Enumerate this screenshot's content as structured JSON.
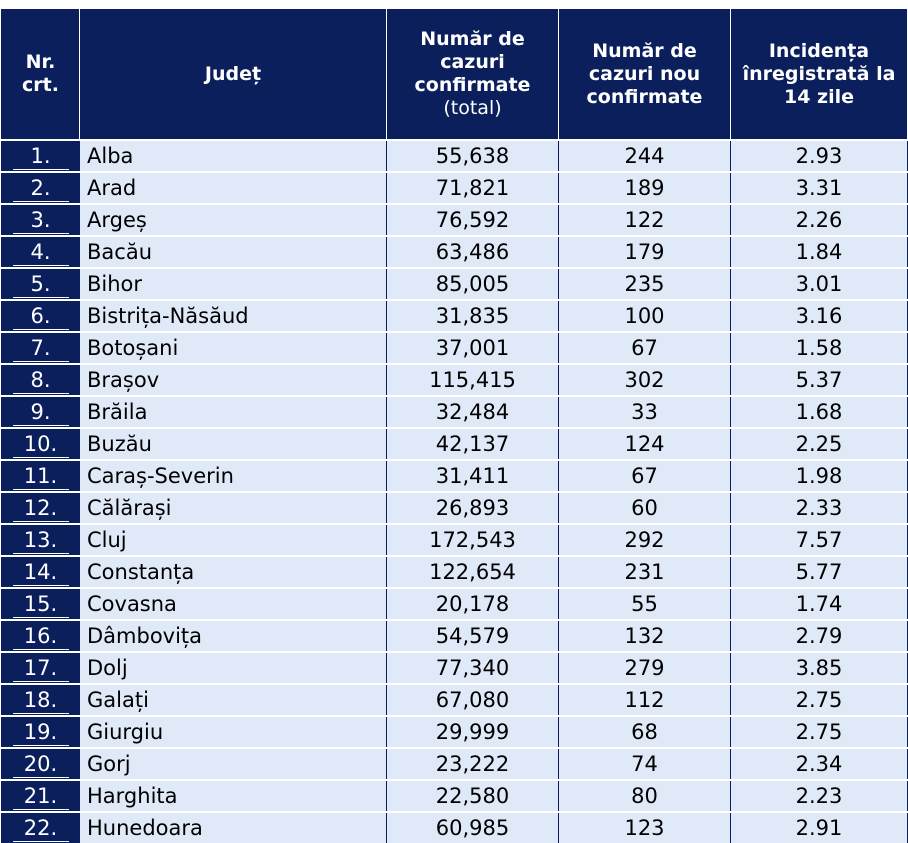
{
  "table": {
    "headers": {
      "nr": "Nr. crt.",
      "judet": "Județ",
      "total_main": "Număr de cazuri confirmate",
      "total_sub": "(total)",
      "nou": "Număr de cazuri nou confirmate",
      "incidenta": "Incidența înregistrată la 14 zile"
    },
    "colors": {
      "header_bg": "#0a1f5c",
      "row_bg": "#dfe9f7"
    },
    "rows": [
      {
        "nr": "1.",
        "judet": "Alba",
        "total": "55,638",
        "nou": "244",
        "incidenta": "2.93"
      },
      {
        "nr": "2.",
        "judet": "Arad",
        "total": "71,821",
        "nou": "189",
        "incidenta": "3.31"
      },
      {
        "nr": "3.",
        "judet": "Argeș",
        "total": "76,592",
        "nou": "122",
        "incidenta": "2.26"
      },
      {
        "nr": "4.",
        "judet": "Bacău",
        "total": "63,486",
        "nou": "179",
        "incidenta": "1.84"
      },
      {
        "nr": "5.",
        "judet": "Bihor",
        "total": "85,005",
        "nou": "235",
        "incidenta": "3.01"
      },
      {
        "nr": "6.",
        "judet": "Bistrița-Năsăud",
        "total": "31,835",
        "nou": "100",
        "incidenta": "3.16"
      },
      {
        "nr": "7.",
        "judet": "Botoșani",
        "total": "37,001",
        "nou": "67",
        "incidenta": "1.58"
      },
      {
        "nr": "8.",
        "judet": "Brașov",
        "total": "115,415",
        "nou": "302",
        "incidenta": "5.37"
      },
      {
        "nr": "9.",
        "judet": "Brăila",
        "total": "32,484",
        "nou": "33",
        "incidenta": "1.68"
      },
      {
        "nr": "10.",
        "judet": "Buzău",
        "total": "42,137",
        "nou": "124",
        "incidenta": "2.25"
      },
      {
        "nr": "11.",
        "judet": "Caraș-Severin",
        "total": "31,411",
        "nou": "67",
        "incidenta": "1.98"
      },
      {
        "nr": "12.",
        "judet": "Călărași",
        "total": "26,893",
        "nou": "60",
        "incidenta": "2.33"
      },
      {
        "nr": "13.",
        "judet": "Cluj",
        "total": "172,543",
        "nou": "292",
        "incidenta": "7.57"
      },
      {
        "nr": "14.",
        "judet": "Constanța",
        "total": "122,654",
        "nou": "231",
        "incidenta": "5.77"
      },
      {
        "nr": "15.",
        "judet": "Covasna",
        "total": "20,178",
        "nou": "55",
        "incidenta": "1.74"
      },
      {
        "nr": "16.",
        "judet": "Dâmbovița",
        "total": "54,579",
        "nou": "132",
        "incidenta": "2.79"
      },
      {
        "nr": "17.",
        "judet": "Dolj",
        "total": "77,340",
        "nou": "279",
        "incidenta": "3.85"
      },
      {
        "nr": "18.",
        "judet": "Galați",
        "total": "67,080",
        "nou": "112",
        "incidenta": "2.75"
      },
      {
        "nr": "19.",
        "judet": "Giurgiu",
        "total": "29,999",
        "nou": "68",
        "incidenta": "2.75"
      },
      {
        "nr": "20.",
        "judet": "Gorj",
        "total": "23,222",
        "nou": "74",
        "incidenta": "2.34"
      },
      {
        "nr": "21.",
        "judet": "Harghita",
        "total": "22,580",
        "nou": "80",
        "incidenta": "2.23"
      },
      {
        "nr": "22.",
        "judet": "Hunedoara",
        "total": "60,985",
        "nou": "123",
        "incidenta": "2.91"
      }
    ]
  }
}
